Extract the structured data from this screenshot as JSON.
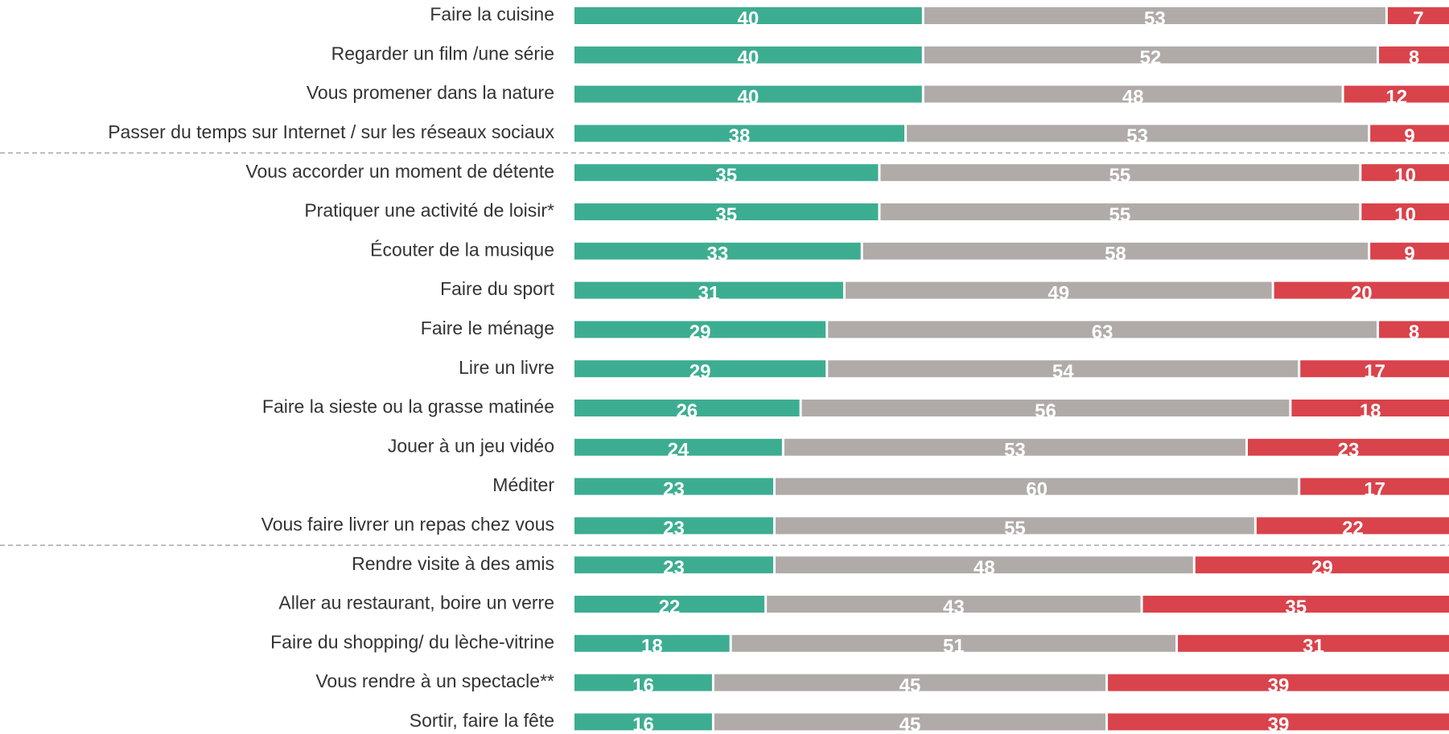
{
  "chart_data": {
    "type": "stacked-bar-horizontal",
    "categories": [
      "Faire la cuisine",
      "Regarder un film /une série",
      "Vous promener dans la nature",
      "Passer du temps sur Internet / sur les réseaux sociaux",
      "Vous accorder un moment de détente",
      "Pratiquer une activité de loisir*",
      "Écouter de la musique",
      "Faire du sport",
      "Faire le ménage",
      "Lire un livre",
      "Faire la sieste ou la grasse matinée",
      "Jouer à un jeu vidéo",
      "Méditer",
      "Vous faire livrer un repas chez vous",
      "Rendre visite à des amis",
      "Aller au restaurant, boire un verre",
      "Faire du shopping/ du lèche-vitrine",
      "Vous rendre à un spectacle**",
      "Sortir, faire la fête"
    ],
    "series": [
      {
        "color": "#3dad91",
        "values": [
          40,
          40,
          40,
          38,
          35,
          35,
          33,
          31,
          29,
          29,
          26,
          24,
          23,
          23,
          23,
          22,
          18,
          16,
          16
        ]
      },
      {
        "color": "#b0aba9",
        "values": [
          53,
          52,
          48,
          53,
          55,
          55,
          58,
          49,
          63,
          54,
          56,
          53,
          60,
          55,
          48,
          43,
          51,
          45,
          45
        ]
      },
      {
        "color": "#d9434b",
        "values": [
          7,
          8,
          12,
          9,
          10,
          10,
          9,
          20,
          8,
          17,
          18,
          23,
          17,
          22,
          29,
          35,
          31,
          39,
          39
        ]
      }
    ],
    "xlim": [
      0,
      100
    ]
  }
}
